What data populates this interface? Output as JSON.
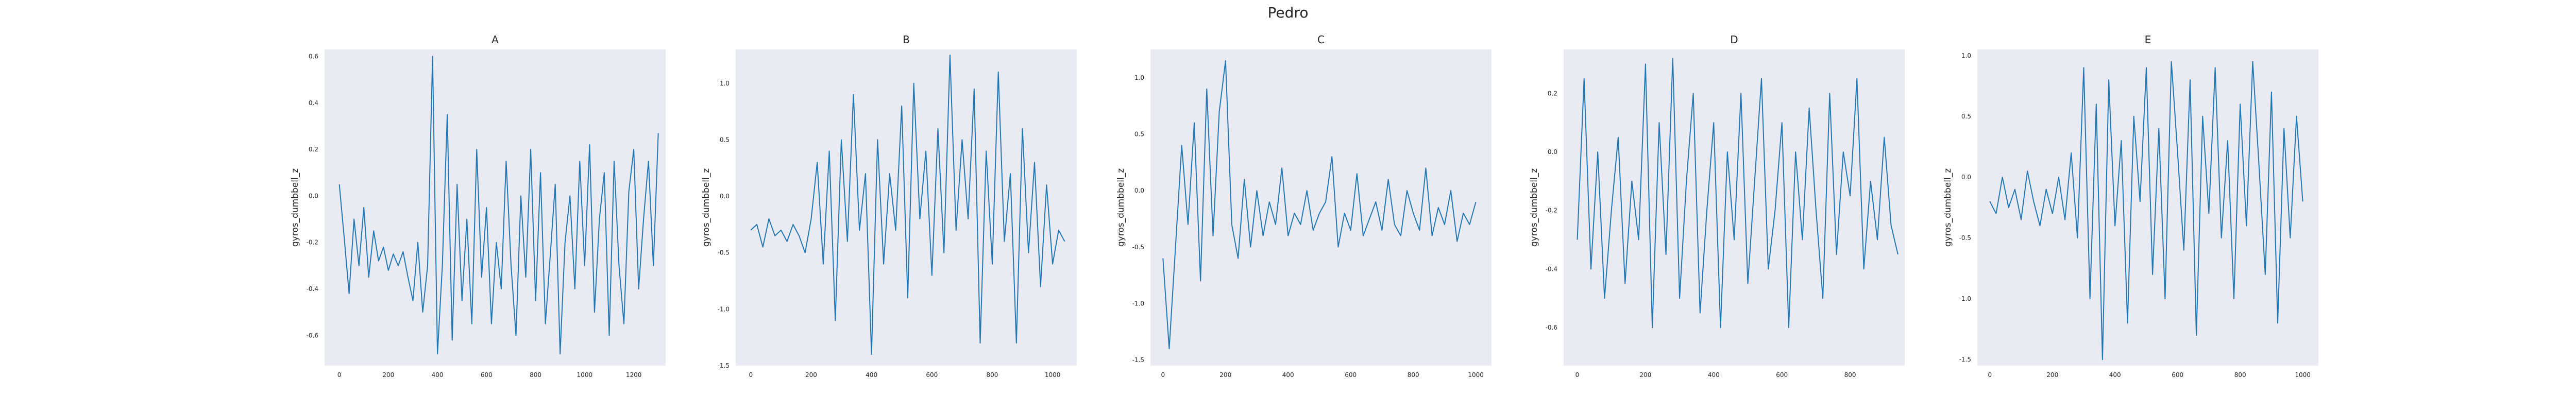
{
  "figure": {
    "title": "Pedro"
  },
  "colors": {
    "line": "#1f77b4",
    "panel_bg": "#eaeaf2",
    "text": "#262626"
  },
  "chart_data": [
    {
      "type": "line",
      "title": "A",
      "xlabel": "",
      "ylabel": "gyros_dumbbell_z",
      "xlim": [
        -60,
        1330
      ],
      "ylim": [
        -0.73,
        0.63
      ],
      "grid": false,
      "xticks": [
        0,
        200,
        400,
        600,
        800,
        1000,
        1200
      ],
      "yticks": [
        -0.6,
        -0.4,
        -0.2,
        0.0,
        0.2,
        0.4,
        0.6
      ],
      "series": [
        {
          "x": [
            0,
            20,
            40,
            60,
            80,
            100,
            120,
            140,
            160,
            180,
            200,
            220,
            240,
            260,
            280,
            300,
            320,
            340,
            360,
            380,
            400,
            420,
            440,
            460,
            480,
            500,
            520,
            540,
            560,
            580,
            600,
            620,
            640,
            660,
            680,
            700,
            720,
            740,
            760,
            780,
            800,
            820,
            840,
            860,
            880,
            900,
            920,
            940,
            960,
            980,
            1000,
            1020,
            1040,
            1060,
            1080,
            1100,
            1120,
            1140,
            1160,
            1180,
            1200,
            1220,
            1240,
            1260,
            1280,
            1300
          ],
          "y": [
            0.05,
            -0.18,
            -0.42,
            -0.1,
            -0.3,
            -0.05,
            -0.35,
            -0.15,
            -0.28,
            -0.22,
            -0.32,
            -0.25,
            -0.3,
            -0.24,
            -0.35,
            -0.45,
            -0.2,
            -0.5,
            -0.3,
            0.6,
            -0.68,
            -0.3,
            0.35,
            -0.62,
            0.05,
            -0.45,
            -0.1,
            -0.55,
            0.2,
            -0.35,
            -0.05,
            -0.55,
            -0.2,
            -0.4,
            0.15,
            -0.3,
            -0.6,
            0.0,
            -0.35,
            0.2,
            -0.45,
            0.1,
            -0.55,
            -0.25,
            0.05,
            -0.68,
            -0.2,
            0.0,
            -0.4,
            0.15,
            -0.3,
            0.22,
            -0.5,
            -0.1,
            0.1,
            -0.6,
            0.15,
            -0.3,
            -0.55,
            0.02,
            0.2,
            -0.4,
            -0.1,
            0.15,
            -0.3,
            0.27
          ]
        }
      ]
    },
    {
      "type": "line",
      "title": "B",
      "xlabel": "",
      "ylabel": "gyros_dumbbell_z",
      "xlim": [
        -50,
        1080
      ],
      "ylim": [
        -1.5,
        1.3
      ],
      "grid": false,
      "xticks": [
        0,
        200,
        400,
        600,
        800,
        1000
      ],
      "yticks": [
        -1.5,
        -1.0,
        -0.5,
        0.0,
        0.5,
        1.0
      ],
      "series": [
        {
          "x": [
            0,
            20,
            40,
            60,
            80,
            100,
            120,
            140,
            160,
            180,
            200,
            220,
            240,
            260,
            280,
            300,
            320,
            340,
            360,
            380,
            400,
            420,
            440,
            460,
            480,
            500,
            520,
            540,
            560,
            580,
            600,
            620,
            640,
            660,
            680,
            700,
            720,
            740,
            760,
            780,
            800,
            820,
            840,
            860,
            880,
            900,
            920,
            940,
            960,
            980,
            1000,
            1020,
            1040
          ],
          "y": [
            -0.3,
            -0.25,
            -0.45,
            -0.2,
            -0.35,
            -0.3,
            -0.4,
            -0.25,
            -0.35,
            -0.5,
            -0.2,
            0.3,
            -0.6,
            0.4,
            -1.1,
            0.5,
            -0.4,
            0.9,
            -0.3,
            0.2,
            -1.4,
            0.5,
            -0.6,
            0.2,
            -0.3,
            0.8,
            -0.9,
            1.0,
            -0.2,
            0.4,
            -0.7,
            0.6,
            -0.5,
            1.25,
            -0.3,
            0.5,
            -0.2,
            0.95,
            -1.3,
            0.4,
            -0.6,
            1.1,
            -0.4,
            0.2,
            -1.3,
            0.6,
            -0.5,
            0.3,
            -0.8,
            0.1,
            -0.6,
            -0.3,
            -0.4
          ]
        }
      ]
    },
    {
      "type": "line",
      "title": "C",
      "xlabel": "",
      "ylabel": "gyros_dumbbell_z",
      "xlim": [
        -40,
        1050
      ],
      "ylim": [
        -1.55,
        1.25
      ],
      "grid": false,
      "xticks": [
        0,
        200,
        400,
        600,
        800,
        1000
      ],
      "yticks": [
        -1.5,
        -1.0,
        -0.5,
        0.0,
        0.5,
        1.0
      ],
      "series": [
        {
          "x": [
            0,
            20,
            40,
            60,
            80,
            100,
            120,
            140,
            160,
            180,
            200,
            220,
            240,
            260,
            280,
            300,
            320,
            340,
            360,
            380,
            400,
            420,
            440,
            460,
            480,
            500,
            520,
            540,
            560,
            580,
            600,
            620,
            640,
            660,
            680,
            700,
            720,
            740,
            760,
            780,
            800,
            820,
            840,
            860,
            880,
            900,
            920,
            940,
            960,
            980,
            1000
          ],
          "y": [
            -0.6,
            -1.4,
            -0.5,
            0.4,
            -0.3,
            0.6,
            -0.8,
            0.9,
            -0.4,
            0.7,
            1.15,
            -0.3,
            -0.6,
            0.1,
            -0.5,
            0.0,
            -0.4,
            -0.1,
            -0.3,
            0.2,
            -0.4,
            -0.2,
            -0.3,
            0.0,
            -0.35,
            -0.2,
            -0.1,
            0.3,
            -0.5,
            -0.2,
            -0.35,
            0.15,
            -0.4,
            -0.25,
            -0.1,
            -0.35,
            0.1,
            -0.3,
            -0.4,
            0.0,
            -0.2,
            -0.35,
            0.2,
            -0.4,
            -0.15,
            -0.3,
            0.0,
            -0.45,
            -0.2,
            -0.3,
            -0.1
          ]
        }
      ]
    },
    {
      "type": "line",
      "title": "D",
      "xlabel": "",
      "ylabel": "gyros_dumbbell_z",
      "xlim": [
        -40,
        960
      ],
      "ylim": [
        -0.73,
        0.35
      ],
      "grid": false,
      "xticks": [
        0,
        200,
        400,
        600,
        800
      ],
      "yticks": [
        -0.6,
        -0.4,
        -0.2,
        0.0,
        0.2
      ],
      "series": [
        {
          "x": [
            0,
            20,
            40,
            60,
            80,
            100,
            120,
            140,
            160,
            180,
            200,
            220,
            240,
            260,
            280,
            300,
            320,
            340,
            360,
            380,
            400,
            420,
            440,
            460,
            480,
            500,
            520,
            540,
            560,
            580,
            600,
            620,
            640,
            660,
            680,
            700,
            720,
            740,
            760,
            780,
            800,
            820,
            840,
            860,
            880,
            900,
            920,
            940
          ],
          "y": [
            -0.3,
            0.25,
            -0.4,
            0.0,
            -0.5,
            -0.2,
            0.05,
            -0.45,
            -0.1,
            -0.3,
            0.3,
            -0.6,
            0.1,
            -0.35,
            0.32,
            -0.5,
            -0.1,
            0.2,
            -0.55,
            -0.2,
            0.1,
            -0.6,
            0.0,
            -0.3,
            0.2,
            -0.45,
            -0.1,
            0.25,
            -0.4,
            -0.2,
            0.1,
            -0.6,
            0.0,
            -0.3,
            0.15,
            -0.2,
            -0.5,
            0.2,
            -0.35,
            0.0,
            -0.15,
            0.25,
            -0.4,
            -0.1,
            -0.3,
            0.05,
            -0.25,
            -0.35
          ]
        }
      ]
    },
    {
      "type": "line",
      "title": "E",
      "xlabel": "",
      "ylabel": "gyros_dumbbell_z",
      "xlim": [
        -40,
        1050
      ],
      "ylim": [
        -1.55,
        1.05
      ],
      "grid": false,
      "xticks": [
        0,
        200,
        400,
        600,
        800,
        1000
      ],
      "yticks": [
        -1.5,
        -1.0,
        -0.5,
        0.0,
        0.5,
        1.0
      ],
      "series": [
        {
          "x": [
            0,
            20,
            40,
            60,
            80,
            100,
            120,
            140,
            160,
            180,
            200,
            220,
            240,
            260,
            280,
            300,
            320,
            340,
            360,
            380,
            400,
            420,
            440,
            460,
            480,
            500,
            520,
            540,
            560,
            580,
            600,
            620,
            640,
            660,
            680,
            700,
            720,
            740,
            760,
            780,
            800,
            820,
            840,
            860,
            880,
            900,
            920,
            940,
            960,
            980,
            1000
          ],
          "y": [
            -0.2,
            -0.3,
            0.0,
            -0.25,
            -0.1,
            -0.35,
            0.05,
            -0.2,
            -0.4,
            -0.1,
            -0.3,
            0.0,
            -0.35,
            0.2,
            -0.5,
            0.9,
            -1.0,
            0.6,
            -1.5,
            0.8,
            -0.4,
            0.3,
            -1.2,
            0.5,
            -0.2,
            0.9,
            -0.8,
            0.4,
            -1.0,
            0.95,
            0.2,
            -0.6,
            0.8,
            -1.3,
            0.5,
            -0.3,
            0.9,
            -0.5,
            0.3,
            -1.0,
            0.6,
            -0.4,
            0.95,
            0.1,
            -0.8,
            0.7,
            -1.2,
            0.4,
            -0.5,
            0.5,
            -0.2
          ]
        }
      ]
    }
  ]
}
